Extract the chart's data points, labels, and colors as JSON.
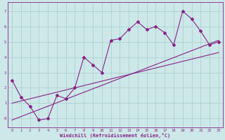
{
  "xlabel": "Windchill (Refroidissement éolien,°C)",
  "bg_color": "#cce8e8",
  "line_color": "#882288",
  "x_data": [
    0,
    1,
    2,
    3,
    4,
    5,
    6,
    7,
    8,
    9,
    10,
    11,
    12,
    13,
    14,
    15,
    16,
    17,
    18,
    19,
    20,
    21,
    22,
    23
  ],
  "y_data": [
    2.5,
    1.4,
    0.8,
    -0.1,
    0.0,
    1.5,
    1.3,
    2.0,
    4.0,
    3.5,
    3.0,
    5.1,
    5.2,
    5.8,
    6.3,
    5.8,
    6.0,
    5.6,
    4.8,
    7.0,
    6.5,
    5.7,
    4.8,
    5.0
  ],
  "trend1_x": [
    0,
    23
  ],
  "trend1_y": [
    1.0,
    4.3
  ],
  "trend2_x": [
    0,
    23
  ],
  "trend2_y": [
    -0.1,
    5.1
  ],
  "xlim": [
    -0.5,
    23.5
  ],
  "ylim": [
    -0.6,
    7.6
  ],
  "yticks": [
    0,
    1,
    2,
    3,
    4,
    5,
    6,
    7
  ],
  "ytick_labels": [
    "-0",
    "1",
    "2",
    "3",
    "4",
    "5",
    "6",
    "7"
  ],
  "xticks": [
    0,
    1,
    2,
    3,
    4,
    5,
    6,
    7,
    8,
    9,
    10,
    11,
    12,
    13,
    14,
    15,
    16,
    17,
    18,
    19,
    20,
    21,
    22,
    23
  ],
  "grid_color": "#aacccc",
  "marker": "D",
  "markersize": 2,
  "linewidth": 0.8,
  "tick_fontsize": 4.0,
  "xlabel_fontsize": 5.0
}
